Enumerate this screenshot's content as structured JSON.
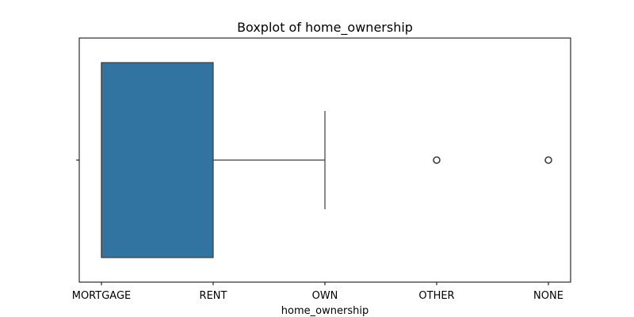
{
  "chart_data": {
    "type": "box",
    "title": "Boxplot of home_ownership",
    "xlabel": "home_ownership",
    "ylabel": "",
    "categories": [
      "MORTGAGE",
      "RENT",
      "OWN",
      "OTHER",
      "NONE"
    ],
    "orientation": "horizontal",
    "box": {
      "q1": "MORTGAGE",
      "median": "MORTGAGE",
      "q3": "RENT",
      "whisker_low": "MORTGAGE",
      "whisker_high": "OWN",
      "outliers": [
        "OTHER",
        "NONE"
      ]
    },
    "colors": {
      "box_fill": "#3274a1",
      "line": "#3d3d3d"
    },
    "grid": false
  }
}
